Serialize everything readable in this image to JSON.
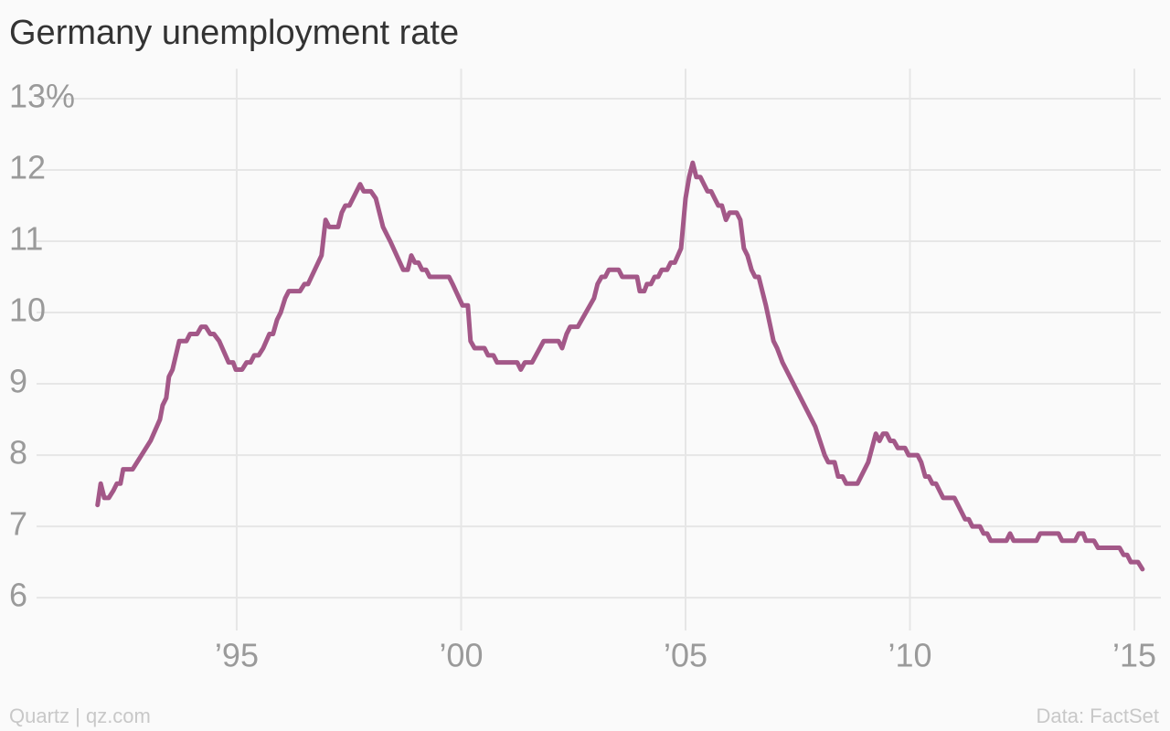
{
  "chart_data": {
    "type": "line",
    "title": "Germany unemployment rate",
    "source": "Data: FactSet",
    "credit": "Quartz | qz.com",
    "xlim": [
      1989.93,
      2015.59
    ],
    "xticks": [
      {
        "value": 1995,
        "label": "’95"
      },
      {
        "value": 2000,
        "label": "’00"
      },
      {
        "value": 2005,
        "label": "’05"
      },
      {
        "value": 2010,
        "label": "’10"
      },
      {
        "value": 2015,
        "label": "’15"
      }
    ],
    "ylim": [
      5.54,
      13.42
    ],
    "yticks": [
      6,
      7,
      8,
      9,
      10,
      11,
      12,
      {
        "value": 13,
        "label": "13%"
      }
    ],
    "grid": true,
    "series": [
      {
        "name": "Unemployment rate",
        "color": "#a35888",
        "x": [
          1991.9,
          1991.97,
          1992.05,
          1992.15,
          1992.25,
          1992.33,
          1992.41,
          1992.47,
          1992.68,
          1992.88,
          1993.08,
          1993.29,
          1993.35,
          1993.43,
          1993.49,
          1993.57,
          1993.72,
          1993.88,
          1993.96,
          1994.12,
          1994.21,
          1994.31,
          1994.41,
          1994.49,
          1994.61,
          1994.82,
          1994.92,
          1994.98,
          1995.12,
          1995.22,
          1995.31,
          1995.39,
          1995.49,
          1995.59,
          1995.73,
          1995.81,
          1995.9,
          1995.98,
          1996.08,
          1996.16,
          1996.41,
          1996.51,
          1996.59,
          1996.89,
          1996.98,
          1997.06,
          1997.26,
          1997.34,
          1997.42,
          1997.51,
          1997.59,
          1997.75,
          1997.83,
          1997.99,
          1998.1,
          1998.18,
          1998.26,
          1998.34,
          1998.42,
          1998.71,
          1998.81,
          1998.89,
          1998.97,
          1999.05,
          1999.13,
          1999.22,
          1999.3,
          1999.73,
          1999.81,
          2000.03,
          2000.15,
          2000.21,
          2000.3,
          2000.52,
          2000.6,
          2000.72,
          2000.8,
          2001.25,
          2001.33,
          2001.42,
          2001.58,
          2001.84,
          2002.17,
          2002.25,
          2002.35,
          2002.43,
          2002.6,
          2002.96,
          2003.04,
          2003.13,
          2003.21,
          2003.29,
          2003.51,
          2003.59,
          2003.92,
          2003.98,
          2004.08,
          2004.14,
          2004.23,
          2004.31,
          2004.39,
          2004.47,
          2004.59,
          2004.67,
          2004.76,
          2004.9,
          2005.0,
          2005.08,
          2005.16,
          2005.24,
          2005.33,
          2005.41,
          2005.49,
          2005.57,
          2005.65,
          2005.73,
          2005.81,
          2005.9,
          2005.98,
          2006.14,
          2006.22,
          2006.3,
          2006.38,
          2006.47,
          2006.55,
          2006.63,
          2006.79,
          2006.96,
          2007.04,
          2007.16,
          2007.89,
          2008.1,
          2008.18,
          2008.32,
          2008.4,
          2008.5,
          2008.58,
          2008.83,
          2009.07,
          2009.24,
          2009.32,
          2009.4,
          2009.48,
          2009.56,
          2009.64,
          2009.73,
          2009.89,
          2009.97,
          2010.17,
          2010.25,
          2010.34,
          2010.42,
          2010.5,
          2010.58,
          2010.74,
          2010.99,
          2011.23,
          2011.31,
          2011.39,
          2011.56,
          2011.64,
          2011.72,
          2011.8,
          2012.15,
          2012.23,
          2012.31,
          2012.82,
          2012.9,
          2013.31,
          2013.39,
          2013.68,
          2013.76,
          2013.86,
          2013.92,
          2014.1,
          2014.19,
          2014.67,
          2014.76,
          2014.84,
          2014.92,
          2015.08,
          2015.18
        ],
        "values": [
          7.3,
          7.6,
          7.4,
          7.4,
          7.5,
          7.6,
          7.6,
          7.8,
          7.8,
          8.0,
          8.2,
          8.5,
          8.7,
          8.8,
          9.1,
          9.2,
          9.6,
          9.6,
          9.7,
          9.7,
          9.8,
          9.8,
          9.7,
          9.7,
          9.6,
          9.3,
          9.3,
          9.2,
          9.2,
          9.3,
          9.3,
          9.4,
          9.4,
          9.5,
          9.7,
          9.7,
          9.9,
          10.0,
          10.2,
          10.3,
          10.3,
          10.4,
          10.4,
          10.8,
          11.3,
          11.2,
          11.2,
          11.4,
          11.5,
          11.5,
          11.6,
          11.8,
          11.7,
          11.7,
          11.6,
          11.4,
          11.2,
          11.1,
          11.0,
          10.6,
          10.6,
          10.8,
          10.7,
          10.7,
          10.6,
          10.6,
          10.5,
          10.5,
          10.4,
          10.1,
          10.1,
          9.6,
          9.5,
          9.5,
          9.4,
          9.4,
          9.3,
          9.3,
          9.2,
          9.3,
          9.3,
          9.6,
          9.6,
          9.5,
          9.7,
          9.8,
          9.8,
          10.2,
          10.4,
          10.5,
          10.5,
          10.6,
          10.6,
          10.5,
          10.5,
          10.3,
          10.3,
          10.4,
          10.4,
          10.5,
          10.5,
          10.6,
          10.6,
          10.7,
          10.7,
          10.9,
          11.6,
          11.9,
          12.1,
          11.9,
          11.9,
          11.8,
          11.7,
          11.7,
          11.6,
          11.5,
          11.5,
          11.3,
          11.4,
          11.4,
          11.3,
          10.9,
          10.8,
          10.6,
          10.5,
          10.5,
          10.1,
          9.6,
          9.5,
          9.3,
          8.4,
          8.0,
          7.9,
          7.9,
          7.7,
          7.7,
          7.6,
          7.6,
          7.9,
          8.3,
          8.2,
          8.3,
          8.3,
          8.2,
          8.2,
          8.1,
          8.1,
          8.0,
          8.0,
          7.9,
          7.7,
          7.7,
          7.6,
          7.6,
          7.4,
          7.4,
          7.1,
          7.1,
          7.0,
          7.0,
          6.9,
          6.9,
          6.8,
          6.8,
          6.9,
          6.8,
          6.8,
          6.9,
          6.9,
          6.8,
          6.8,
          6.9,
          6.9,
          6.8,
          6.8,
          6.7,
          6.7,
          6.6,
          6.6,
          6.5,
          6.5,
          6.4
        ]
      }
    ]
  }
}
